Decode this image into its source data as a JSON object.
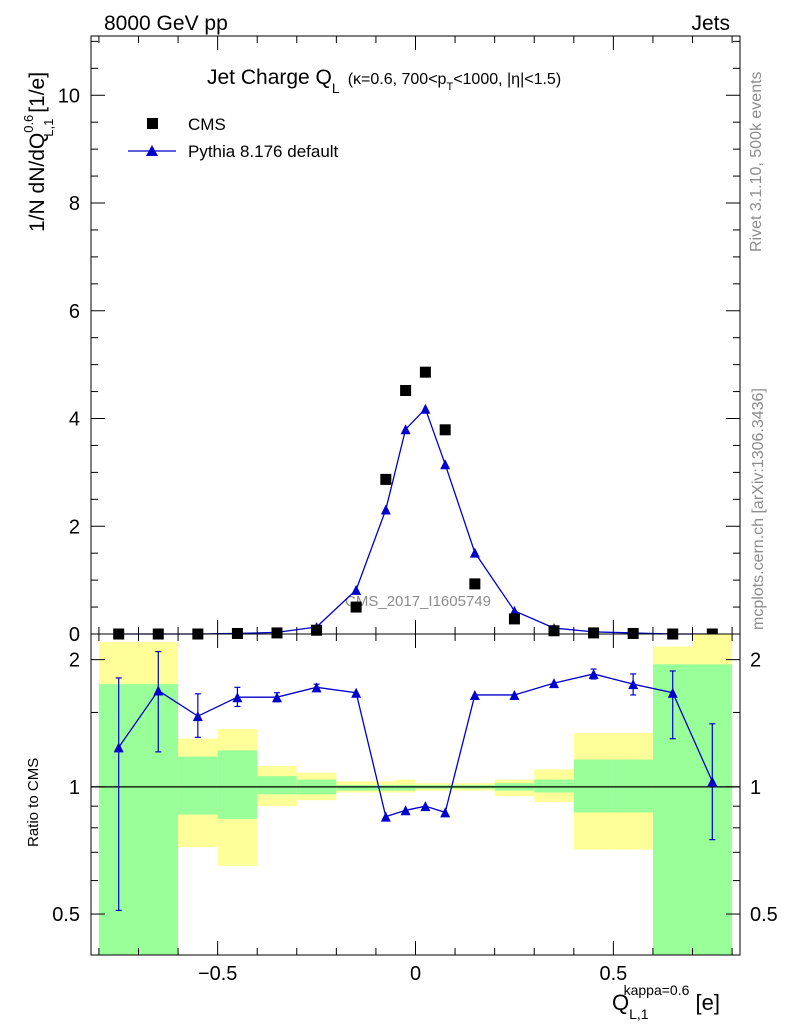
{
  "header": {
    "energy": "8000 GeV pp",
    "category": "Jets"
  },
  "side_labels": {
    "rivet": "Rivet 3.1.10,  500k events",
    "mcplots": "mcplots.cern.ch [arXiv:1306.3436]"
  },
  "chart_data": [
    {
      "type": "scatter",
      "title_main": "Jet Charge Q",
      "title_sub": "L",
      "title_rest": "(κ=0.6, 700<p",
      "title_sub2": "T",
      "title_tail": "<1000, |η|<1.5)",
      "ylabel": "1/N dN/dQ",
      "ylabel_sup": "0.6",
      "ylabel_sub": "L,1",
      "ylabel_unit": " [1/e]",
      "watermark": "CMS_2017_I1605749",
      "xlim": [
        -0.82,
        0.82
      ],
      "ylim": [
        0,
        11.1
      ],
      "yticks": [
        0,
        2,
        4,
        6,
        8,
        10
      ],
      "legend_position": "top-left",
      "series": [
        {
          "name": "CMS",
          "marker": "square",
          "color": "#000000",
          "x": [
            -0.75,
            -0.65,
            -0.55,
            -0.45,
            -0.35,
            -0.25,
            -0.15,
            -0.075,
            -0.025,
            0.025,
            0.075,
            0.15,
            0.25,
            0.35,
            0.45,
            0.55,
            0.65,
            0.75
          ],
          "y": [
            0.0,
            0.0,
            0.0,
            0.01,
            0.02,
            0.07,
            0.5,
            2.87,
            4.52,
            4.86,
            3.79,
            0.93,
            0.28,
            0.06,
            0.02,
            0.01,
            0.0,
            0.0
          ]
        },
        {
          "name": "Pythia 8.176 default",
          "marker": "triangle",
          "color": "#0000cc",
          "x": [
            -0.75,
            -0.65,
            -0.55,
            -0.45,
            -0.35,
            -0.25,
            -0.15,
            -0.075,
            -0.025,
            0.025,
            0.075,
            0.15,
            0.25,
            0.35,
            0.45,
            0.55,
            0.65,
            0.75
          ],
          "y": [
            0.0,
            0.0,
            0.0,
            0.01,
            0.03,
            0.13,
            0.82,
            2.31,
            3.8,
            4.18,
            3.15,
            1.51,
            0.43,
            0.11,
            0.04,
            0.02,
            0.0,
            0.0
          ]
        }
      ]
    },
    {
      "type": "line",
      "ylabel": "Ratio to CMS",
      "xlabel": "Q",
      "xlabel_sub": "L,1",
      "xlabel_sup": "kappa=0.6",
      "xlabel_unit": " [e]",
      "scale": "log",
      "xlim": [
        -0.82,
        0.82
      ],
      "ylim": [
        0.4,
        2.3
      ],
      "xticks": [
        -0.5,
        0,
        0.5
      ],
      "xtick_labels": [
        "−0.5",
        "0",
        "0.5"
      ],
      "yticks": [
        0.5,
        1,
        2
      ],
      "ytick_labels": [
        "0.5",
        "1",
        "2"
      ],
      "reference": 1,
      "bins": [
        {
          "lo": -0.8,
          "hi": -0.7,
          "g": [
            0.4,
            1.75
          ],
          "y": [
            0.4,
            2.2
          ]
        },
        {
          "lo": -0.7,
          "hi": -0.6,
          "g": [
            0.4,
            1.75
          ],
          "y": [
            0.4,
            2.2
          ]
        },
        {
          "lo": -0.6,
          "hi": -0.5,
          "g": [
            0.86,
            1.18
          ],
          "y": [
            0.72,
            1.3
          ]
        },
        {
          "lo": -0.5,
          "hi": -0.4,
          "g": [
            0.84,
            1.22
          ],
          "y": [
            0.65,
            1.37
          ]
        },
        {
          "lo": -0.4,
          "hi": -0.3,
          "g": [
            0.96,
            1.06
          ],
          "y": [
            0.9,
            1.12
          ]
        },
        {
          "lo": -0.3,
          "hi": -0.2,
          "g": [
            0.96,
            1.04
          ],
          "y": [
            0.93,
            1.08
          ]
        },
        {
          "lo": -0.2,
          "hi": -0.1,
          "g": [
            0.98,
            1.01
          ],
          "y": [
            0.97,
            1.03
          ]
        },
        {
          "lo": -0.1,
          "hi": -0.05,
          "g": [
            0.98,
            1.01
          ],
          "y": [
            0.97,
            1.03
          ]
        },
        {
          "lo": -0.05,
          "hi": 0.0,
          "g": [
            0.98,
            1.01
          ],
          "y": [
            0.97,
            1.04
          ]
        },
        {
          "lo": 0.0,
          "hi": 0.05,
          "g": [
            0.99,
            1.01
          ],
          "y": [
            0.98,
            1.02
          ]
        },
        {
          "lo": 0.05,
          "hi": 0.1,
          "g": [
            0.99,
            1.01
          ],
          "y": [
            0.98,
            1.02
          ]
        },
        {
          "lo": 0.1,
          "hi": 0.2,
          "g": [
            0.99,
            1.01
          ],
          "y": [
            0.98,
            1.02
          ]
        },
        {
          "lo": 0.2,
          "hi": 0.3,
          "g": [
            0.98,
            1.02
          ],
          "y": [
            0.95,
            1.04
          ]
        },
        {
          "lo": 0.3,
          "hi": 0.4,
          "g": [
            0.97,
            1.04
          ],
          "y": [
            0.92,
            1.1
          ]
        },
        {
          "lo": 0.4,
          "hi": 0.5,
          "g": [
            0.87,
            1.16
          ],
          "y": [
            0.71,
            1.34
          ]
        },
        {
          "lo": 0.5,
          "hi": 0.6,
          "g": [
            0.87,
            1.16
          ],
          "y": [
            0.71,
            1.34
          ]
        },
        {
          "lo": 0.6,
          "hi": 0.7,
          "g": [
            0.4,
            1.95
          ],
          "y": [
            0.4,
            2.15
          ]
        },
        {
          "lo": 0.7,
          "hi": 0.8,
          "g": [
            0.4,
            1.95
          ],
          "y": [
            0.4,
            2.3
          ]
        }
      ],
      "band_colors": {
        "green": "#99ff99",
        "yellow": "#ffff99"
      },
      "series": [
        {
          "name": "Pythia 8.176 default",
          "color": "#0000cc",
          "x": [
            -0.75,
            -0.65,
            -0.55,
            -0.45,
            -0.35,
            -0.25,
            -0.15,
            -0.075,
            -0.025,
            0.025,
            0.075,
            0.15,
            0.25,
            0.35,
            0.45,
            0.55,
            0.65,
            0.75
          ],
          "y": [
            1.24,
            1.69,
            1.47,
            1.63,
            1.63,
            1.72,
            1.67,
            0.85,
            0.88,
            0.9,
            0.87,
            1.65,
            1.65,
            1.76,
            1.85,
            1.75,
            1.67,
            1.03
          ],
          "err_lo": [
            0.73,
            0.48,
            0.16,
            0.08,
            0.04,
            0.03,
            0.0,
            0.0,
            0.0,
            0.0,
            0.0,
            0.0,
            0.0,
            0.0,
            0.05,
            0.1,
            0.37,
            0.28
          ],
          "err_hi": [
            0.57,
            0.4,
            0.19,
            0.09,
            0.04,
            0.03,
            0.0,
            0.0,
            0.0,
            0.0,
            0.0,
            0.0,
            0.0,
            0.0,
            0.05,
            0.1,
            0.21,
            0.38
          ]
        }
      ]
    }
  ]
}
